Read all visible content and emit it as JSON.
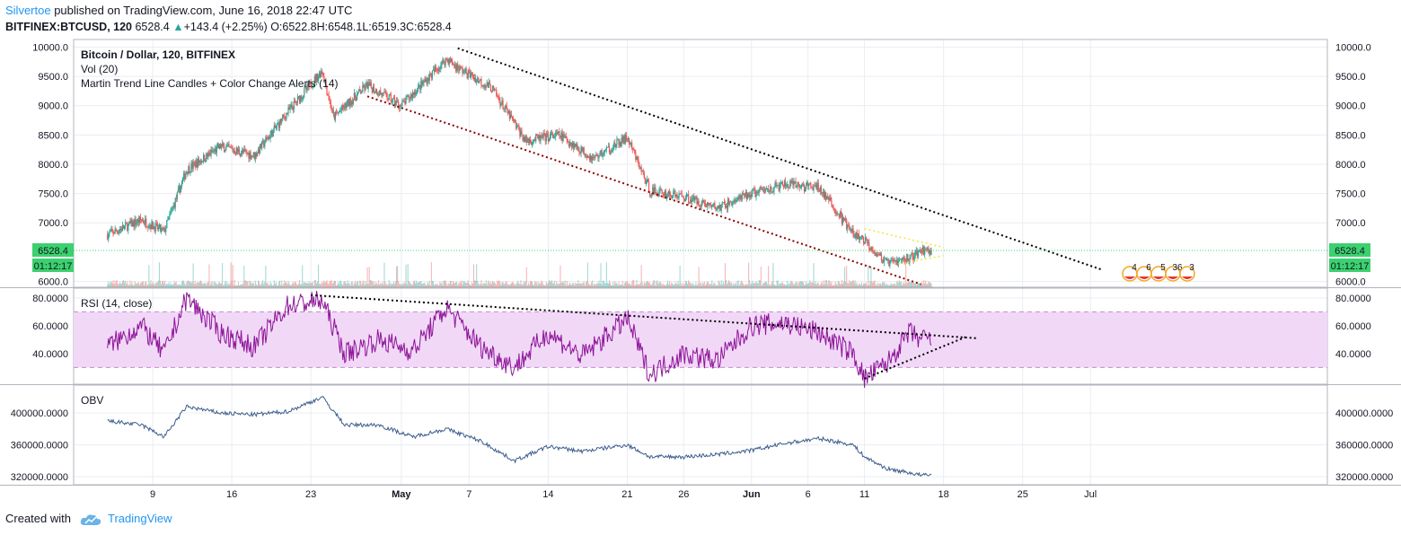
{
  "header": {
    "author": "Silvertoe",
    "published": "published on TradingView.com, June 16, 2018 22:47 UTC",
    "symbol": "BITFINEX:BTCUSD, 120",
    "last": "6528.4",
    "change_arrow": "▲",
    "change": "+143.4 (+2.25%)",
    "open": "O:6522.8",
    "high": "H:6548.1",
    "low": "L:6519.3",
    "close": "C:6528.4"
  },
  "footer": {
    "created_with": "Created with",
    "brand": "TradingView"
  },
  "colors": {
    "up": "#26a69a",
    "down": "#ef5350",
    "rsi_line": "#8e1599",
    "rsi_band": "#f1d8f7",
    "obv_line": "#3c5d8c",
    "last_price_badge": "#3bd16f",
    "grid": "#e9edf2",
    "axis": "#787b86",
    "trend": "#000000",
    "channel": "#8b0000",
    "pennant": "#f5e642"
  },
  "chart_data": [
    {
      "type": "candlestick",
      "pane": "price",
      "legend": [
        "Bitcoin / Dollar, 120, BITFINEX",
        "Vol (20)",
        "Martin Trend Line Candles + Color Change Alerts (14)"
      ],
      "y_ticks": [
        "10000.0",
        "9500.0",
        "9000.0",
        "8500.0",
        "8000.0",
        "7500.0",
        "7000.0",
        "6000.0"
      ],
      "ylim": [
        5900,
        10130
      ],
      "x_ticks": [
        "9",
        "16",
        "23",
        "May",
        "7",
        "14",
        "21",
        "26",
        "Jun",
        "6",
        "11",
        "18",
        "25",
        "Jul"
      ],
      "last_price": "6528.4",
      "countdown": "01:12:17",
      "approx_daily_close": [
        {
          "date": "2018-04-05",
          "close": 6800
        },
        {
          "date": "2018-04-08",
          "close": 7050
        },
        {
          "date": "2018-04-10",
          "close": 6850
        },
        {
          "date": "2018-04-12",
          "close": 7900
        },
        {
          "date": "2018-04-15",
          "close": 8300
        },
        {
          "date": "2018-04-18",
          "close": 8150
        },
        {
          "date": "2018-04-21",
          "close": 8900
        },
        {
          "date": "2018-04-24",
          "close": 9600
        },
        {
          "date": "2018-04-25",
          "close": 8800
        },
        {
          "date": "2018-04-28",
          "close": 9350
        },
        {
          "date": "2018-05-01",
          "close": 9000
        },
        {
          "date": "2018-05-05",
          "close": 9800
        },
        {
          "date": "2018-05-06",
          "close": 9650
        },
        {
          "date": "2018-05-09",
          "close": 9300
        },
        {
          "date": "2018-05-12",
          "close": 8400
        },
        {
          "date": "2018-05-15",
          "close": 8500
        },
        {
          "date": "2018-05-18",
          "close": 8100
        },
        {
          "date": "2018-05-21",
          "close": 8450
        },
        {
          "date": "2018-05-23",
          "close": 7550
        },
        {
          "date": "2018-05-26",
          "close": 7450
        },
        {
          "date": "2018-05-29",
          "close": 7250
        },
        {
          "date": "2018-06-01",
          "close": 7500
        },
        {
          "date": "2018-06-04",
          "close": 7650
        },
        {
          "date": "2018-06-07",
          "close": 7600
        },
        {
          "date": "2018-06-10",
          "close": 6800
        },
        {
          "date": "2018-06-11",
          "close": 6700
        },
        {
          "date": "2018-06-13",
          "close": 6300
        },
        {
          "date": "2018-06-15",
          "close": 6400
        },
        {
          "date": "2018-06-16",
          "close": 6528.4
        }
      ],
      "trendlines": [
        {
          "style": "dotted",
          "color": "black",
          "from": {
            "date": "2018-05-06",
            "price": 9980
          },
          "to": {
            "date": "2018-07-02",
            "price": 6200
          }
        },
        {
          "style": "dotted",
          "color": "darkred",
          "from": {
            "date": "2018-04-28",
            "price": 9160
          },
          "to": {
            "date": "2018-06-16",
            "price": 5950
          }
        },
        {
          "style": "dotted",
          "color": "yellow",
          "from": {
            "date": "2018-06-11",
            "price": 6900
          },
          "to": {
            "date": "2018-06-18",
            "price": 6580
          }
        },
        {
          "style": "dotted",
          "color": "yellow",
          "from": {
            "date": "2018-06-14",
            "price": 6300
          },
          "to": {
            "date": "2018-06-18",
            "price": 6440
          }
        }
      ],
      "event_markers": [
        "4",
        "6",
        "5",
        "36",
        "3"
      ]
    },
    {
      "type": "line",
      "pane": "rsi",
      "legend": "RSI (14, close)",
      "y_ticks": [
        "80.0000",
        "60.0000",
        "40.0000"
      ],
      "ylim": [
        18,
        87
      ],
      "band": [
        30,
        70
      ],
      "approx_values": [
        {
          "date": "2018-04-05",
          "value": 45
        },
        {
          "date": "2018-04-08",
          "value": 60
        },
        {
          "date": "2018-04-10",
          "value": 40
        },
        {
          "date": "2018-04-12",
          "value": 80
        },
        {
          "date": "2018-04-15",
          "value": 55
        },
        {
          "date": "2018-04-18",
          "value": 45
        },
        {
          "date": "2018-04-21",
          "value": 75
        },
        {
          "date": "2018-04-24",
          "value": 78
        },
        {
          "date": "2018-04-26",
          "value": 40
        },
        {
          "date": "2018-04-29",
          "value": 50
        },
        {
          "date": "2018-05-02",
          "value": 42
        },
        {
          "date": "2018-05-05",
          "value": 73
        },
        {
          "date": "2018-05-08",
          "value": 45
        },
        {
          "date": "2018-05-11",
          "value": 30
        },
        {
          "date": "2018-05-14",
          "value": 55
        },
        {
          "date": "2018-05-17",
          "value": 38
        },
        {
          "date": "2018-05-21",
          "value": 65
        },
        {
          "date": "2018-05-23",
          "value": 25
        },
        {
          "date": "2018-05-26",
          "value": 40
        },
        {
          "date": "2018-05-29",
          "value": 35
        },
        {
          "date": "2018-06-01",
          "value": 60
        },
        {
          "date": "2018-06-04",
          "value": 62
        },
        {
          "date": "2018-06-07",
          "value": 55
        },
        {
          "date": "2018-06-10",
          "value": 40
        },
        {
          "date": "2018-06-11",
          "value": 22
        },
        {
          "date": "2018-06-13",
          "value": 33
        },
        {
          "date": "2018-06-15",
          "value": 55
        },
        {
          "date": "2018-06-16",
          "value": 50
        }
      ],
      "trendlines": [
        {
          "style": "dotted",
          "from": {
            "date": "2018-04-23",
            "value": 82
          },
          "to": {
            "date": "2018-06-21",
            "value": 51
          }
        },
        {
          "style": "dotted",
          "from": {
            "date": "2018-06-11",
            "value": 22
          },
          "to": {
            "date": "2018-06-20",
            "value": 52
          }
        }
      ]
    },
    {
      "type": "line",
      "pane": "obv",
      "legend": "OBV",
      "y_ticks": [
        "400000.0000",
        "360000.0000",
        "320000.0000"
      ],
      "ylim": [
        310000,
        435000
      ],
      "approx_values": [
        {
          "date": "2018-04-05",
          "value": 390000
        },
        {
          "date": "2018-04-08",
          "value": 385000
        },
        {
          "date": "2018-04-10",
          "value": 370000
        },
        {
          "date": "2018-04-12",
          "value": 408000
        },
        {
          "date": "2018-04-15",
          "value": 400000
        },
        {
          "date": "2018-04-18",
          "value": 398000
        },
        {
          "date": "2018-04-21",
          "value": 402000
        },
        {
          "date": "2018-04-24",
          "value": 420000
        },
        {
          "date": "2018-04-26",
          "value": 385000
        },
        {
          "date": "2018-04-29",
          "value": 385000
        },
        {
          "date": "2018-05-02",
          "value": 370000
        },
        {
          "date": "2018-05-05",
          "value": 380000
        },
        {
          "date": "2018-05-08",
          "value": 365000
        },
        {
          "date": "2018-05-11",
          "value": 340000
        },
        {
          "date": "2018-05-14",
          "value": 358000
        },
        {
          "date": "2018-05-17",
          "value": 352000
        },
        {
          "date": "2018-05-21",
          "value": 360000
        },
        {
          "date": "2018-05-23",
          "value": 345000
        },
        {
          "date": "2018-05-26",
          "value": 345000
        },
        {
          "date": "2018-05-29",
          "value": 348000
        },
        {
          "date": "2018-06-01",
          "value": 353000
        },
        {
          "date": "2018-06-04",
          "value": 362000
        },
        {
          "date": "2018-06-07",
          "value": 368000
        },
        {
          "date": "2018-06-10",
          "value": 360000
        },
        {
          "date": "2018-06-11",
          "value": 345000
        },
        {
          "date": "2018-06-13",
          "value": 330000
        },
        {
          "date": "2018-06-15",
          "value": 325000
        },
        {
          "date": "2018-06-16",
          "value": 322000
        }
      ]
    }
  ]
}
